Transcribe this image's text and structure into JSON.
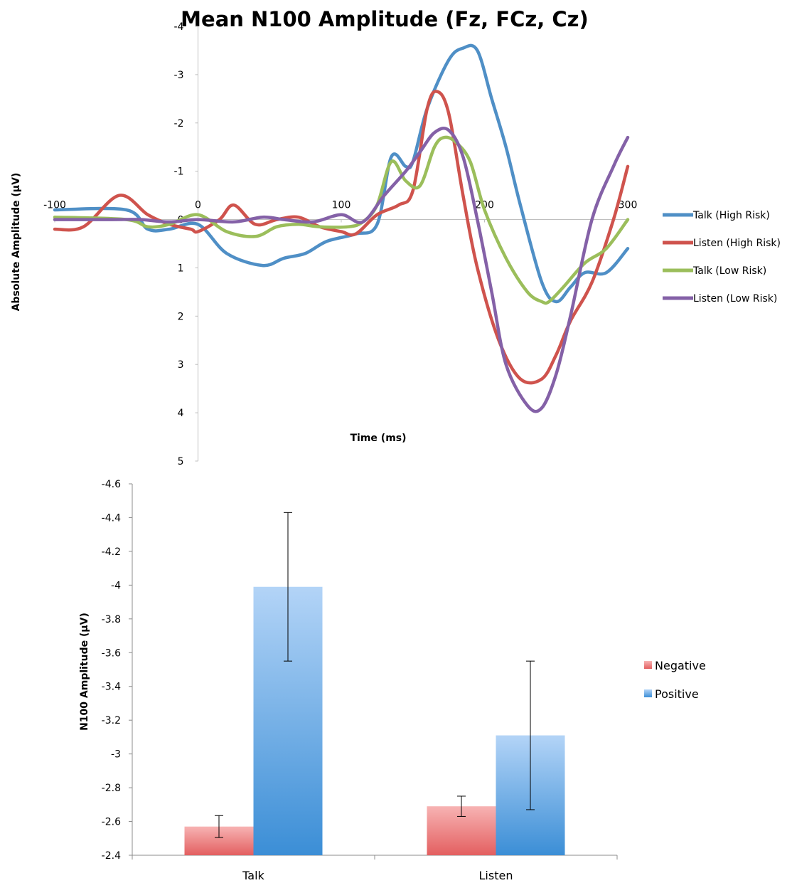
{
  "chart_data": [
    {
      "type": "line",
      "title": "Mean N100 Amplitude (Fz, FCz, Cz)",
      "xlabel": "Time (ms)",
      "ylabel": "Absolute Amplitude (µV)",
      "xlim": [
        -100,
        300
      ],
      "ylim": [
        -4,
        5
      ],
      "y_reversed": true,
      "xticks": [
        "-100",
        "0",
        "100",
        "200",
        "300"
      ],
      "yticks": [
        "-4",
        "-3",
        "-2",
        "-1",
        "0",
        "1",
        "2",
        "3",
        "4",
        "5"
      ],
      "legend_position": "right",
      "series": [
        {
          "name": "Talk (High Risk)",
          "color": "#4f8fc6",
          "x": [
            -100,
            -50,
            -35,
            -20,
            0,
            20,
            45,
            60,
            75,
            90,
            110,
            125,
            135,
            145,
            150,
            160,
            175,
            185,
            195,
            205,
            215,
            225,
            240,
            250,
            260,
            270,
            285,
            300
          ],
          "y": [
            -0.2,
            -0.2,
            0.2,
            0.2,
            0.1,
            0.7,
            0.95,
            0.8,
            0.7,
            0.45,
            0.3,
            0.1,
            -1.3,
            -1.1,
            -1.2,
            -2.3,
            -3.3,
            -3.55,
            -3.5,
            -2.5,
            -1.5,
            -0.3,
            1.3,
            1.7,
            1.4,
            1.1,
            1.1,
            0.6
          ]
        },
        {
          "name": "Listen (High Risk)",
          "color": "#cf534d",
          "x": [
            -100,
            -80,
            -55,
            -35,
            -20,
            -5,
            0,
            15,
            25,
            40,
            55,
            70,
            85,
            100,
            110,
            125,
            140,
            150,
            160,
            167,
            175,
            185,
            195,
            210,
            225,
            240,
            250,
            260,
            275,
            290,
            300
          ],
          "y": [
            0.2,
            0.15,
            -0.5,
            -0.1,
            0.1,
            0.2,
            0.25,
            0.0,
            -0.3,
            0.1,
            0.0,
            -0.05,
            0.15,
            0.25,
            0.3,
            -0.1,
            -0.3,
            -0.6,
            -2.3,
            -2.65,
            -2.2,
            -0.5,
            1.0,
            2.5,
            3.3,
            3.3,
            2.8,
            2.1,
            1.3,
            0.0,
            -1.1
          ]
        },
        {
          "name": "Talk (Low Risk)",
          "color": "#9bbe5b",
          "x": [
            -100,
            -50,
            -35,
            -20,
            0,
            20,
            40,
            55,
            70,
            85,
            105,
            115,
            125,
            135,
            145,
            155,
            165,
            172,
            180,
            190,
            200,
            215,
            230,
            240,
            245,
            255,
            270,
            285,
            300
          ],
          "y": [
            -0.05,
            0.0,
            0.15,
            0.1,
            -0.1,
            0.25,
            0.35,
            0.15,
            0.1,
            0.15,
            0.15,
            0.05,
            -0.3,
            -1.2,
            -0.8,
            -0.7,
            -1.5,
            -1.7,
            -1.6,
            -1.2,
            -0.2,
            0.8,
            1.5,
            1.7,
            1.7,
            1.4,
            0.9,
            0.6,
            0.0
          ]
        },
        {
          "name": "Listen (Low Risk)",
          "color": "#8461a7",
          "x": [
            -100,
            -60,
            -40,
            -20,
            0,
            25,
            45,
            60,
            80,
            100,
            115,
            130,
            145,
            155,
            165,
            175,
            185,
            195,
            205,
            215,
            230,
            240,
            250,
            260,
            275,
            290,
            300
          ],
          "y": [
            0.0,
            0.0,
            0.0,
            0.05,
            0.0,
            0.05,
            -0.05,
            0.0,
            0.05,
            -0.1,
            0.05,
            -0.5,
            -1.0,
            -1.4,
            -1.8,
            -1.85,
            -1.3,
            0.0,
            1.5,
            3.0,
            3.85,
            3.9,
            3.2,
            2.0,
            0.0,
            -1.1,
            -1.7
          ]
        }
      ]
    },
    {
      "type": "bar",
      "xlabel": "",
      "ylabel": "N100 Amplitude (µV)",
      "ylim": [
        -2.4,
        -4.6
      ],
      "y_reversed": true,
      "yticks": [
        "-4.6",
        "-4.4",
        "-4.2",
        "-4",
        "-3.8",
        "-3.6",
        "-3.4",
        "-3.2",
        "-3",
        "-2.8",
        "-2.6",
        "-2.4"
      ],
      "categories": [
        "Talk",
        "Listen"
      ],
      "legend_position": "right",
      "series": [
        {
          "name": "Negative",
          "color": "#e8787a",
          "values": [
            -2.57,
            -2.69
          ],
          "error": [
            0.065,
            0.06
          ]
        },
        {
          "name": "Positive",
          "color": "#5e9ed9",
          "values": [
            -3.99,
            -3.11
          ],
          "error": [
            0.44,
            0.44
          ]
        }
      ]
    }
  ]
}
